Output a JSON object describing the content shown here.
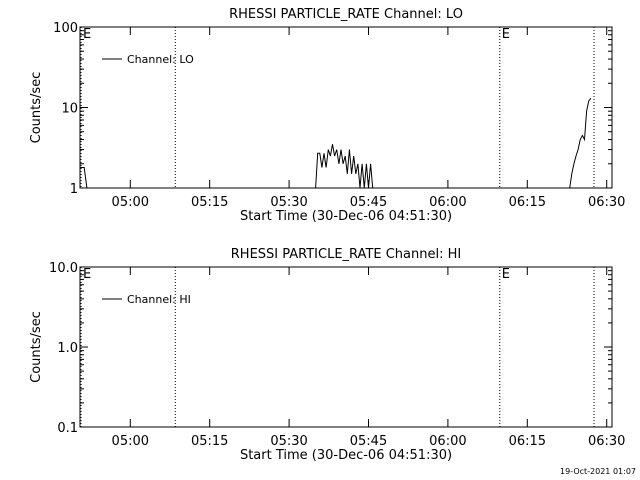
{
  "chart_data": [
    {
      "type": "line",
      "title": "RHESSI PARTICLE_RATE Channel: LO",
      "xlabel": "Start Time (30-Dec-06 04:51:30)",
      "ylabel": "Counts/sec",
      "log_y": true,
      "ylim": [
        1,
        100
      ],
      "yticks": [
        1,
        10,
        100
      ],
      "xlim": [
        -1,
        99.5
      ],
      "xticks": [
        {
          "value": 8.5,
          "label": "05:00"
        },
        {
          "value": 23.5,
          "label": "05:15"
        },
        {
          "value": 38.5,
          "label": "05:30"
        },
        {
          "value": 53.5,
          "label": "05:45"
        },
        {
          "value": 68.5,
          "label": "06:00"
        },
        {
          "value": 83.5,
          "label": "06:15"
        },
        {
          "value": 98.5,
          "label": "06:30"
        }
      ],
      "vlines": [
        {
          "value": -0.8,
          "label": "E"
        },
        {
          "value": 17,
          "label": ""
        },
        {
          "value": 78.3,
          "label": "E"
        },
        {
          "value": 96.1,
          "label": ""
        }
      ],
      "x": [
        -1,
        -0.6,
        -0.2,
        0.3,
        null,
        43.5,
        43.9,
        44.3,
        44.7,
        45.1,
        45.5,
        45.9,
        46.3,
        46.7,
        47.1,
        47.5,
        47.9,
        48.3,
        48.7,
        49.1,
        49.5,
        49.9,
        50.3,
        50.7,
        51.1,
        51.5,
        51.9,
        52.3,
        52.7,
        53.1,
        53.5,
        53.9,
        54.3,
        null,
        91.5,
        91.9,
        92.3,
        92.7,
        93.1,
        93.5,
        93.9,
        94.3,
        94.7,
        95.1,
        95.5
      ],
      "series": [
        {
          "name": "Channel: LO",
          "color": "#000000",
          "values": [
            1.8,
            1.8,
            1.8,
            1,
            null,
            1,
            2.7,
            2.7,
            1.8,
            2.7,
            1.8,
            3,
            2.5,
            3.5,
            2.5,
            3,
            2,
            3,
            2,
            2.5,
            1.5,
            3,
            1.5,
            2.5,
            1.5,
            2,
            1,
            2,
            1,
            2,
            1,
            2,
            1,
            null,
            1,
            1.5,
            2,
            2.5,
            3,
            4,
            4.5,
            4,
            9,
            12,
            13
          ]
        }
      ]
    },
    {
      "type": "line",
      "title": "RHESSI PARTICLE_RATE Channel: HI",
      "xlabel": "Start Time (30-Dec-06 04:51:30)",
      "ylabel": "Counts/sec",
      "log_y": true,
      "ylim": [
        0.1,
        10
      ],
      "yticks": [
        {
          "value": 0.1,
          "label": "0.1"
        },
        {
          "value": 1,
          "label": "1.0"
        },
        {
          "value": 10,
          "label": "10.0"
        }
      ],
      "xlim": [
        -1,
        99.5
      ],
      "xticks": [
        {
          "value": 8.5,
          "label": "05:00"
        },
        {
          "value": 23.5,
          "label": "05:15"
        },
        {
          "value": 38.5,
          "label": "05:30"
        },
        {
          "value": 53.5,
          "label": "05:45"
        },
        {
          "value": 68.5,
          "label": "06:00"
        },
        {
          "value": 83.5,
          "label": "06:15"
        },
        {
          "value": 98.5,
          "label": "06:30"
        }
      ],
      "vlines": [
        {
          "value": -0.8,
          "label": "E"
        },
        {
          "value": 17,
          "label": ""
        },
        {
          "value": 78.3,
          "label": "E"
        },
        {
          "value": 96.1,
          "label": ""
        }
      ],
      "x": [],
      "series": [
        {
          "name": "Channel: HI",
          "color": "#000000",
          "values": []
        }
      ]
    }
  ],
  "footer": "19-Oct-2021 01:07"
}
